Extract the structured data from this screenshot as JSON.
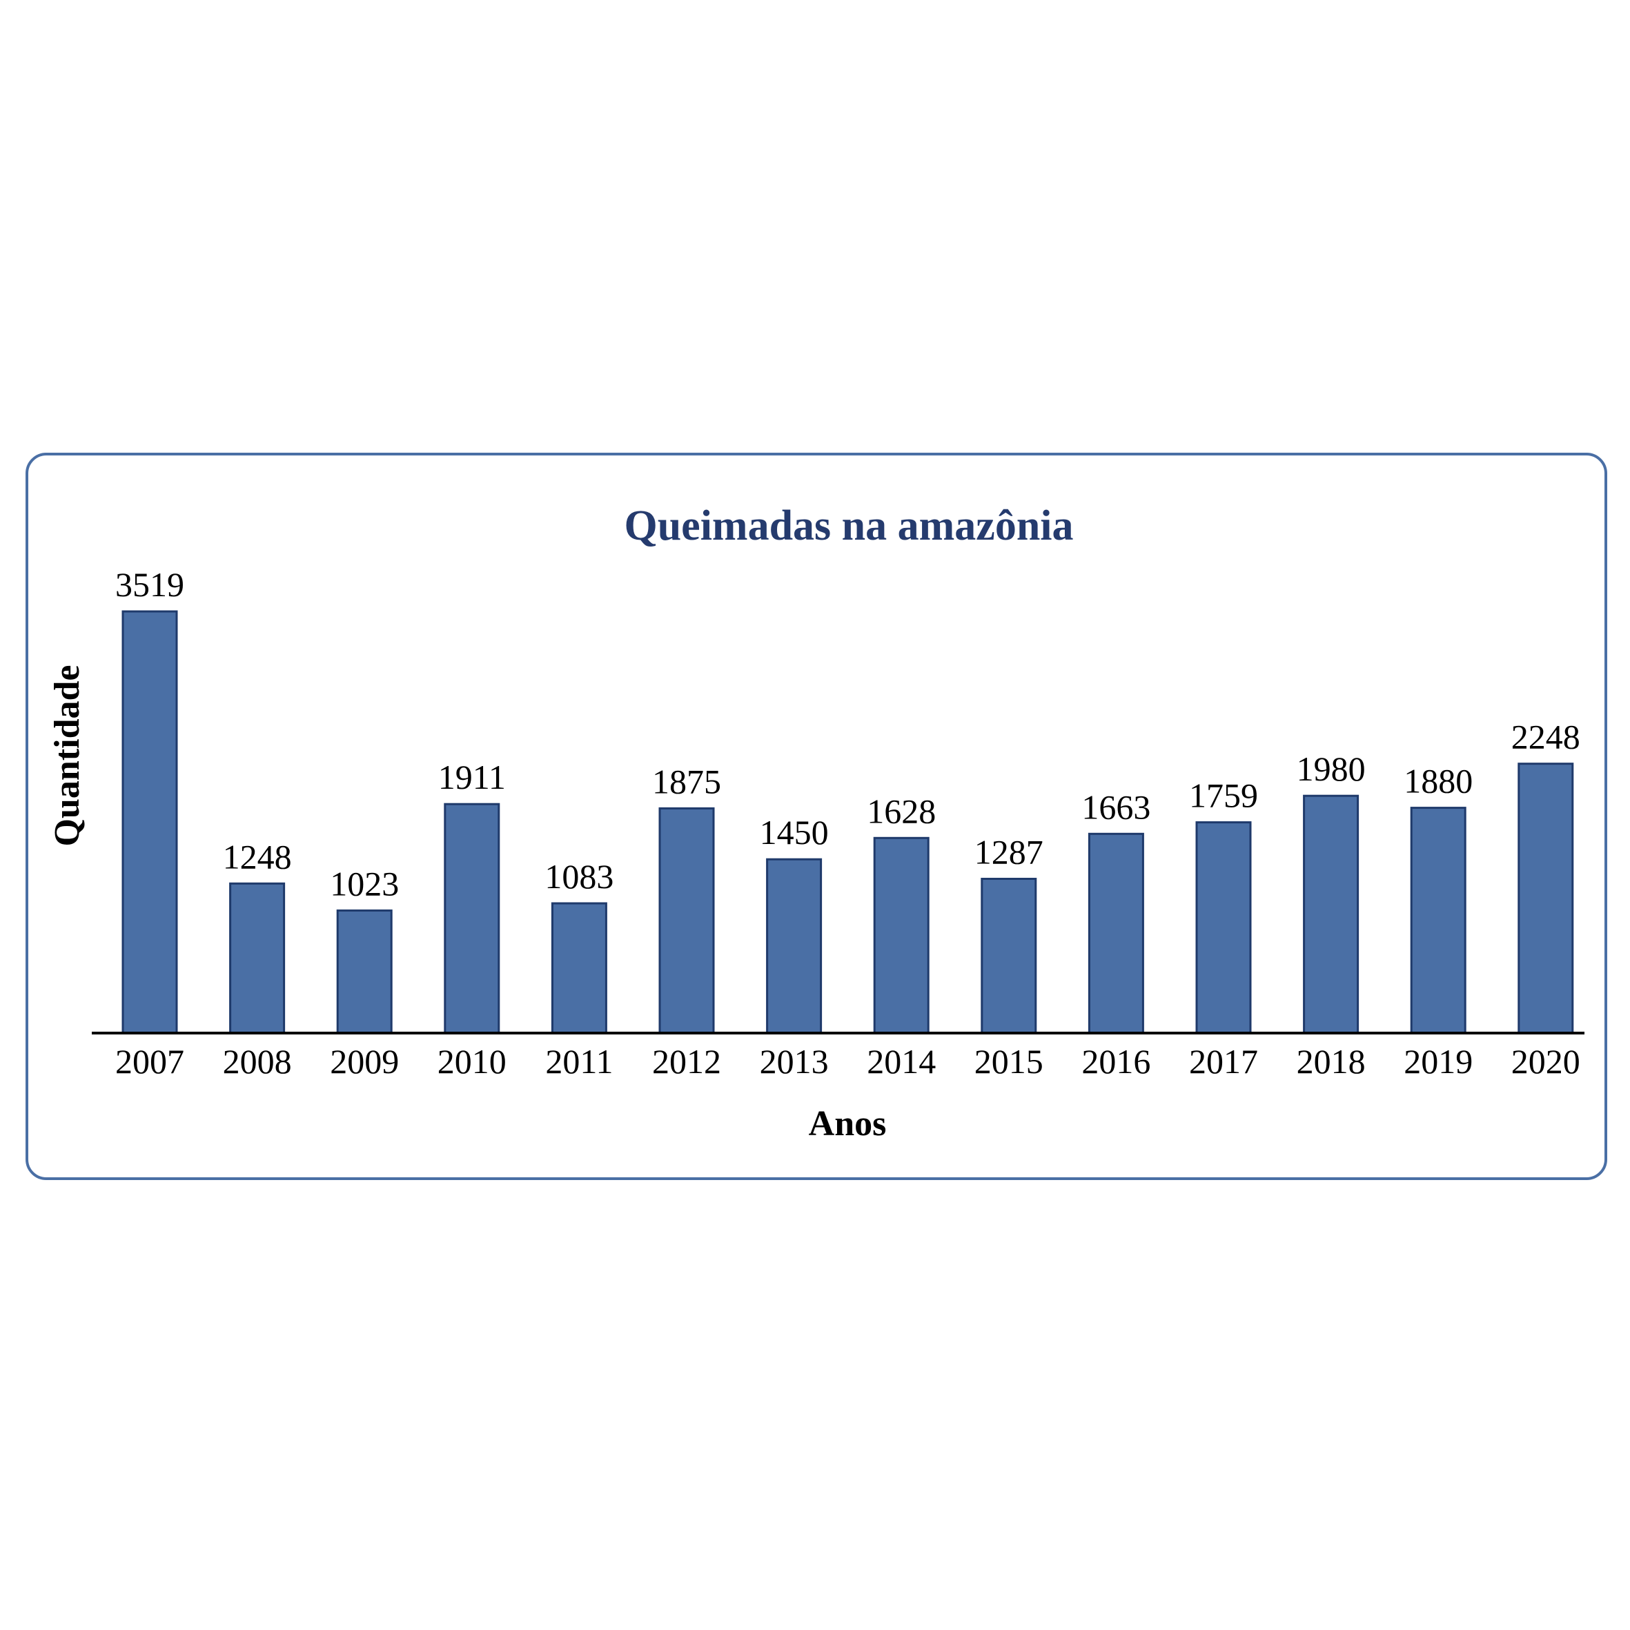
{
  "chart_data": {
    "type": "bar",
    "title": "Queimadas na amazônia",
    "xlabel": "Anos",
    "ylabel": "Quantidade",
    "categories": [
      "2007",
      "2008",
      "2009",
      "2010",
      "2011",
      "2012",
      "2013",
      "2014",
      "2015",
      "2016",
      "2017",
      "2018",
      "2019",
      "2020"
    ],
    "values": [
      3519,
      1248,
      1023,
      1911,
      1083,
      1875,
      1450,
      1628,
      1287,
      1663,
      1759,
      1980,
      1880,
      2248
    ],
    "ylim": [
      0,
      3519
    ],
    "grid": false,
    "legend": "none",
    "colors": {
      "bar_fill": "#4a6fa5",
      "bar_stroke": "#1f3a6b",
      "title": "#253b6e",
      "frame": "#4a6fa5",
      "axis": "#000000"
    }
  }
}
